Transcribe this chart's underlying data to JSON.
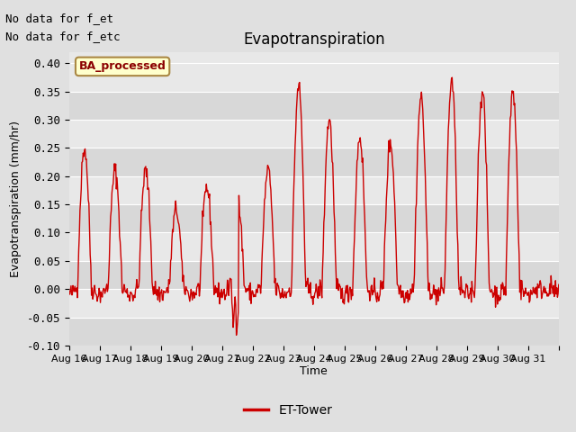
{
  "title": "Evapotranspiration",
  "ylabel": "Evapotranspiration (mm/hr)",
  "xlabel": "Time",
  "ylim": [
    -0.1,
    0.42
  ],
  "yticks": [
    -0.1,
    -0.05,
    0.0,
    0.05,
    0.1,
    0.15,
    0.2,
    0.25,
    0.3,
    0.35,
    0.4
  ],
  "line_color": "#cc0000",
  "line_width": 1.0,
  "fig_bg_color": "#e0e0e0",
  "ax_bg_color": "#e8e8e8",
  "band_color_dark": "#d8d8d8",
  "band_color_light": "#e8e8e8",
  "text_annotations": [
    "No data for f_et",
    "No data for f_etc"
  ],
  "legend_label": "ET-Tower",
  "legend_box_facecolor": "#ffffcc",
  "legend_box_edgecolor": "#aa8844",
  "legend_box_text": "BA_processed",
  "legend_box_text_color": "#8b0000",
  "x_labels": [
    "Aug 16",
    "Aug 17",
    "Aug 18",
    "Aug 19",
    "Aug 20",
    "Aug 21",
    "Aug 22",
    "Aug 23",
    "Aug 24",
    "Aug 25",
    "Aug 26",
    "Aug 27",
    "Aug 28",
    "Aug 29",
    "Aug 30",
    "Aug 31"
  ],
  "n_days": 16,
  "pts_per_day": 48,
  "seed": 42,
  "peak_amps": [
    0.25,
    0.21,
    0.21,
    0.14,
    0.18,
    0.16,
    0.21,
    0.36,
    0.3,
    0.27,
    0.26,
    0.34,
    0.37,
    0.35,
    0.35,
    0.0
  ]
}
